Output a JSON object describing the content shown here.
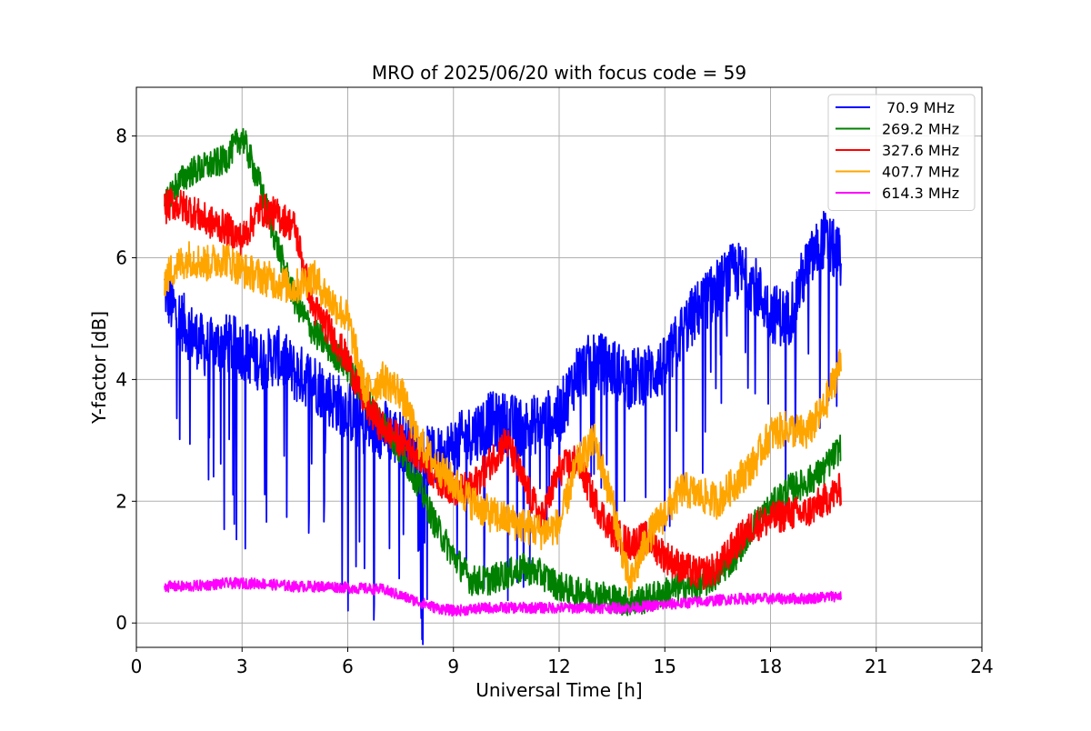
{
  "chart_data": {
    "type": "line",
    "title": "MRO of 2025/06/20 with focus code = 59",
    "xlabel": "Universal Time [h]",
    "ylabel": "Y-factor [dB]",
    "xlim": [
      0,
      24
    ],
    "ylim": [
      -0.4,
      8.8
    ],
    "xticks": [
      0,
      3,
      6,
      9,
      12,
      15,
      18,
      21,
      24
    ],
    "yticks": [
      0,
      2,
      4,
      6,
      8
    ],
    "grid": true,
    "legend_position": "top-right",
    "series": [
      {
        "name": " 70.9 MHz",
        "color": "#0000ff",
        "x": [
          0.8,
          1.0,
          1.5,
          2.0,
          2.5,
          3.0,
          3.5,
          4.0,
          4.5,
          5.0,
          5.5,
          6.0,
          6.5,
          7.0,
          7.5,
          8.0,
          8.5,
          9.0,
          9.5,
          10.0,
          10.5,
          11.0,
          11.5,
          12.0,
          12.5,
          13.0,
          13.5,
          14.0,
          14.5,
          15.0,
          15.5,
          16.0,
          16.5,
          17.0,
          17.5,
          18.0,
          18.5,
          19.0,
          19.5,
          20.0
        ],
        "y": [
          5.5,
          5.2,
          4.8,
          4.5,
          4.6,
          4.5,
          4.3,
          4.4,
          4.1,
          4.0,
          3.7,
          3.5,
          3.2,
          3.2,
          3.0,
          2.8,
          2.7,
          2.9,
          3.1,
          3.3,
          3.3,
          3.2,
          3.3,
          3.4,
          4.1,
          4.3,
          4.2,
          4.0,
          4.1,
          4.2,
          4.8,
          5.2,
          5.5,
          5.8,
          5.6,
          5.1,
          5.0,
          5.8,
          6.3,
          6.0
        ],
        "noise": 0.5
      },
      {
        "name": "269.2 MHz",
        "color": "#008000",
        "x": [
          0.8,
          1.0,
          1.5,
          2.0,
          2.5,
          3.0,
          3.5,
          4.0,
          4.5,
          5.0,
          5.5,
          6.0,
          6.5,
          7.0,
          7.5,
          8.0,
          8.5,
          9.0,
          9.5,
          10.0,
          10.5,
          11.0,
          11.5,
          12.0,
          12.5,
          13.0,
          13.5,
          14.0,
          14.5,
          15.0,
          15.5,
          16.0,
          16.5,
          17.0,
          17.5,
          18.0,
          18.5,
          19.0,
          19.5,
          20.0
        ],
        "y": [
          6.8,
          7.1,
          7.4,
          7.5,
          7.6,
          8.0,
          7.2,
          6.2,
          5.3,
          4.8,
          4.5,
          4.2,
          3.7,
          3.3,
          2.8,
          2.3,
          1.6,
          1.1,
          0.7,
          0.7,
          0.8,
          0.9,
          0.8,
          0.6,
          0.5,
          0.5,
          0.4,
          0.35,
          0.4,
          0.5,
          0.6,
          0.6,
          0.8,
          1.1,
          1.6,
          1.9,
          2.2,
          2.3,
          2.5,
          2.9
        ],
        "noise": 0.25
      },
      {
        "name": "327.6 MHz",
        "color": "#ff0000",
        "x": [
          0.8,
          1.0,
          1.5,
          2.0,
          2.5,
          3.0,
          3.5,
          4.0,
          4.5,
          5.0,
          5.5,
          6.0,
          6.5,
          7.0,
          7.5,
          8.0,
          8.5,
          9.0,
          9.5,
          10.0,
          10.5,
          11.0,
          11.5,
          12.0,
          12.5,
          13.0,
          13.5,
          14.0,
          14.5,
          15.0,
          15.5,
          16.0,
          16.5,
          17.0,
          17.5,
          18.0,
          18.5,
          19.0,
          19.5,
          20.0
        ],
        "y": [
          6.8,
          6.9,
          6.8,
          6.6,
          6.5,
          6.3,
          6.8,
          6.7,
          6.5,
          5.2,
          4.8,
          4.3,
          3.6,
          3.2,
          3.0,
          2.8,
          2.4,
          2.2,
          2.2,
          2.6,
          3.0,
          2.3,
          1.7,
          2.5,
          2.7,
          2.0,
          1.5,
          1.3,
          1.4,
          1.1,
          0.9,
          0.8,
          0.9,
          1.3,
          1.6,
          1.7,
          1.8,
          1.8,
          2.0,
          2.2
        ],
        "noise": 0.28
      },
      {
        "name": "407.7 MHz",
        "color": "#ffa500",
        "x": [
          0.8,
          1.0,
          1.5,
          2.0,
          2.5,
          3.0,
          3.5,
          4.0,
          4.5,
          5.0,
          5.5,
          6.0,
          6.5,
          7.0,
          7.5,
          8.0,
          8.5,
          9.0,
          9.5,
          10.0,
          10.5,
          11.0,
          11.5,
          12.0,
          12.5,
          13.0,
          13.5,
          14.0,
          14.5,
          15.0,
          15.5,
          16.0,
          16.5,
          17.0,
          17.5,
          18.0,
          18.5,
          19.0,
          19.5,
          20.0
        ],
        "y": [
          5.6,
          5.8,
          6.0,
          5.9,
          6.0,
          5.8,
          5.7,
          5.6,
          5.5,
          5.7,
          5.3,
          5.0,
          3.8,
          4.0,
          3.8,
          3.0,
          2.6,
          2.3,
          2.0,
          1.8,
          1.7,
          1.6,
          1.5,
          1.6,
          2.6,
          3.0,
          2.0,
          0.6,
          1.4,
          1.8,
          2.2,
          2.1,
          2.0,
          2.3,
          2.6,
          3.1,
          3.2,
          3.1,
          3.5,
          4.3
        ],
        "noise": 0.3
      },
      {
        "name": "614.3 MHz",
        "color": "#ff00ff",
        "x": [
          0.8,
          1.5,
          2.5,
          3.5,
          4.5,
          5.5,
          6.0,
          7.0,
          7.5,
          8.0,
          8.5,
          9.0,
          10.0,
          11.0,
          12.0,
          13.0,
          14.0,
          15.0,
          16.0,
          17.0,
          18.0,
          19.0,
          20.0
        ],
        "y": [
          0.6,
          0.6,
          0.65,
          0.65,
          0.6,
          0.6,
          0.58,
          0.55,
          0.45,
          0.35,
          0.25,
          0.2,
          0.25,
          0.25,
          0.25,
          0.25,
          0.25,
          0.3,
          0.35,
          0.4,
          0.4,
          0.4,
          0.45
        ],
        "noise": 0.09
      }
    ]
  }
}
